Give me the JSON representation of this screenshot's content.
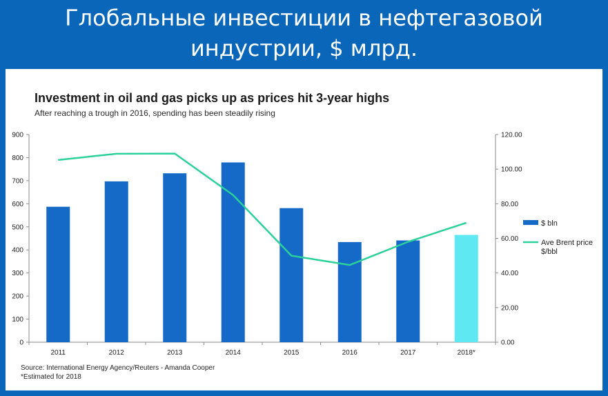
{
  "slide": {
    "title_line1": "Глобальные инвестиции в нефтегазовой",
    "title_line2": "индустрии, $ млрд."
  },
  "colors": {
    "background": "#0a66b8",
    "bar": "#1569c7",
    "bar_estimate": "#5ee8f2",
    "line": "#2ad19a"
  },
  "chart_data": {
    "type": "bar",
    "title": "Investment in oil and gas picks up as prices hit 3-year highs",
    "subtitle": "After reaching a trough in 2016, spending has been steadily rising",
    "categories": [
      "2011",
      "2012",
      "2013",
      "2014",
      "2015",
      "2016",
      "2017",
      "2018*"
    ],
    "series": [
      {
        "name": "$ bln",
        "type": "bar",
        "axis": "left",
        "values": [
          587,
          697,
          732,
          779,
          581,
          434,
          441,
          465
        ],
        "estimated_index": 7
      },
      {
        "name": "Ave Brent price $/bbl",
        "type": "line",
        "axis": "right",
        "values": [
          105.3,
          108.9,
          109.0,
          85.0,
          50.0,
          44.6,
          58.0,
          69.0
        ]
      }
    ],
    "left_axis": {
      "ylim": [
        0,
        900
      ],
      "ticks": [
        "0",
        "100",
        "200",
        "300",
        "400",
        "500",
        "600",
        "700",
        "800",
        "900"
      ]
    },
    "right_axis": {
      "ylim": [
        0,
        120
      ],
      "ticks": [
        "0.00",
        "20.00",
        "40.00",
        "60.00",
        "80.00",
        "100.00",
        "120.00"
      ]
    },
    "legend": [
      {
        "label": "$ bln",
        "marker": "bar"
      },
      {
        "label_line1": "Ave Brent price",
        "label_line2": "$/bbl",
        "marker": "line"
      }
    ],
    "legend_position": "right",
    "grid": false,
    "source": "Source: International Energy Agency/Reuters - Amanda Cooper",
    "footnote": "*Estimated for 2018"
  }
}
